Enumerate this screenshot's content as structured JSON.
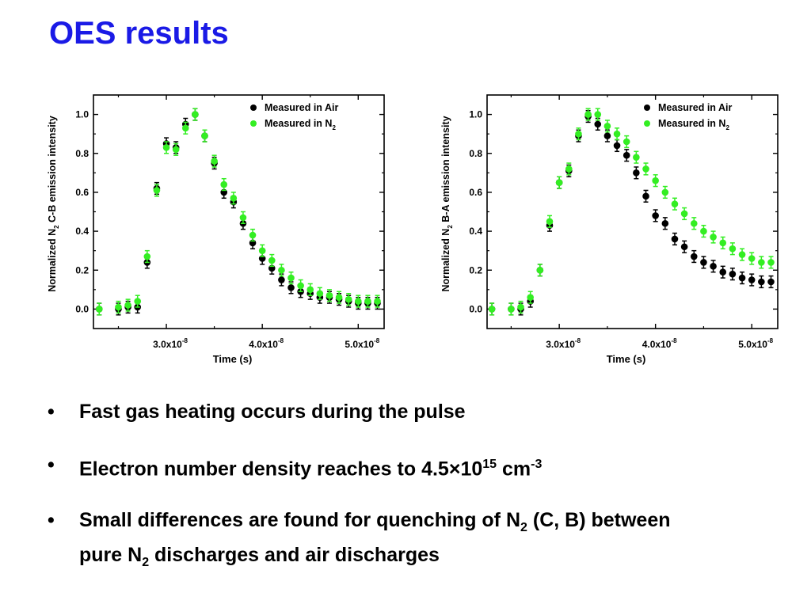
{
  "slide": {
    "title": "OES results",
    "bullet_glyph": "•",
    "bullets": [
      {
        "text": "Fast gas heating occurs during the pulse"
      },
      {
        "pre": "Electron number density reaches to 4.5",
        "times": "×",
        "base": "10",
        "exp": "15",
        "mid": " cm",
        "exp2": "-3"
      },
      {
        "a": "Small differences are found for quenching of N",
        "a_sub": "2",
        "b": " (C, B) between",
        "c": "pure N",
        "c_sub": "2",
        "d": " discharges and air discharges"
      }
    ]
  },
  "chart_data": [
    {
      "type": "scatter",
      "xlabel": "Time (s)",
      "ylabel_pre": "Normalized N",
      "ylabel_sub": "2",
      "ylabel_post": " C-B emission intensity",
      "xlim": [
        2.24e-08,
        5.27e-08
      ],
      "ylim": [
        -0.1,
        1.1
      ],
      "xticks": [
        {
          "v": 3e-08,
          "m": "3.0x10",
          "e": "-8"
        },
        {
          "v": 4e-08,
          "m": "4.0x10",
          "e": "-8"
        },
        {
          "v": 5e-08,
          "m": "5.0x10",
          "e": "-8"
        }
      ],
      "yticks": [
        {
          "v": 0.0,
          "label": "0.0"
        },
        {
          "v": 0.2,
          "label": "0.2"
        },
        {
          "v": 0.4,
          "label": "0.4"
        },
        {
          "v": 0.6,
          "label": "0.6"
        },
        {
          "v": 0.8,
          "label": "0.8"
        },
        {
          "v": 1.0,
          "label": "1.0"
        }
      ],
      "legend_position": "top-right",
      "series": [
        {
          "name": "Measured in Air",
          "color": "#000000",
          "err": 0.03,
          "x": [
            2.3e-08,
            2.5e-08,
            2.6e-08,
            2.7e-08,
            2.8e-08,
            2.9e-08,
            3e-08,
            3.1e-08,
            3.2e-08,
            3.3e-08,
            3.4e-08,
            3.5e-08,
            3.6e-08,
            3.7e-08,
            3.8e-08,
            3.9e-08,
            4e-08,
            4.1e-08,
            4.2e-08,
            4.3e-08,
            4.4e-08,
            4.5e-08,
            4.6e-08,
            4.7e-08,
            4.8e-08,
            4.9e-08,
            5e-08,
            5.1e-08,
            5.2e-08
          ],
          "y": [
            0.0,
            0.0,
            0.01,
            0.01,
            0.24,
            0.62,
            0.85,
            0.83,
            0.95,
            1.0,
            0.89,
            0.75,
            0.6,
            0.55,
            0.44,
            0.34,
            0.26,
            0.21,
            0.15,
            0.11,
            0.09,
            0.08,
            0.06,
            0.06,
            0.05,
            0.04,
            0.03,
            0.03,
            0.03
          ]
        },
        {
          "name": "Measured in N",
          "name_sub": "2",
          "color": "#33ee22",
          "err": 0.03,
          "x": [
            2.3e-08,
            2.5e-08,
            2.6e-08,
            2.7e-08,
            2.8e-08,
            2.9e-08,
            3e-08,
            3.1e-08,
            3.2e-08,
            3.3e-08,
            3.4e-08,
            3.5e-08,
            3.6e-08,
            3.7e-08,
            3.8e-08,
            3.9e-08,
            4e-08,
            4.1e-08,
            4.2e-08,
            4.3e-08,
            4.4e-08,
            4.5e-08,
            4.6e-08,
            4.7e-08,
            4.8e-08,
            4.9e-08,
            5e-08,
            5.1e-08,
            5.2e-08
          ],
          "y": [
            0.0,
            0.01,
            0.02,
            0.04,
            0.27,
            0.61,
            0.83,
            0.82,
            0.93,
            1.0,
            0.89,
            0.76,
            0.64,
            0.57,
            0.47,
            0.38,
            0.3,
            0.25,
            0.2,
            0.16,
            0.12,
            0.1,
            0.08,
            0.07,
            0.06,
            0.05,
            0.04,
            0.04,
            0.04
          ]
        }
      ]
    },
    {
      "type": "scatter",
      "xlabel": "Time (s)",
      "ylabel_pre": "Normalized N",
      "ylabel_sub": "2",
      "ylabel_post": " B-A emission intensity",
      "xlim": [
        2.25e-08,
        5.27e-08
      ],
      "ylim": [
        -0.1,
        1.1
      ],
      "xticks": [
        {
          "v": 3e-08,
          "m": "3.0x10",
          "e": "-8"
        },
        {
          "v": 4e-08,
          "m": "4.0x10",
          "e": "-8"
        },
        {
          "v": 5e-08,
          "m": "5.0x10",
          "e": "-8"
        }
      ],
      "yticks": [
        {
          "v": 0.0,
          "label": "0.0"
        },
        {
          "v": 0.2,
          "label": "0.2"
        },
        {
          "v": 0.4,
          "label": "0.4"
        },
        {
          "v": 0.6,
          "label": "0.6"
        },
        {
          "v": 0.8,
          "label": "0.8"
        },
        {
          "v": 1.0,
          "label": "1.0"
        }
      ],
      "legend_position": "top-right",
      "series": [
        {
          "name": "Measured in Air",
          "color": "#000000",
          "err": 0.03,
          "x": [
            2.3e-08,
            2.5e-08,
            2.6e-08,
            2.7e-08,
            2.8e-08,
            2.9e-08,
            3e-08,
            3.1e-08,
            3.2e-08,
            3.3e-08,
            3.4e-08,
            3.5e-08,
            3.6e-08,
            3.7e-08,
            3.8e-08,
            3.9e-08,
            4e-08,
            4.1e-08,
            4.2e-08,
            4.3e-08,
            4.4e-08,
            4.5e-08,
            4.6e-08,
            4.7e-08,
            4.8e-08,
            4.9e-08,
            5e-08,
            5.1e-08,
            5.2e-08
          ],
          "y": [
            0.0,
            0.0,
            0.0,
            0.04,
            0.2,
            0.43,
            0.65,
            0.71,
            0.89,
            0.99,
            0.95,
            0.89,
            0.84,
            0.79,
            0.7,
            0.58,
            0.48,
            0.44,
            0.36,
            0.32,
            0.27,
            0.24,
            0.22,
            0.19,
            0.18,
            0.16,
            0.15,
            0.14,
            0.14
          ]
        },
        {
          "name": "Measured in N",
          "name_sub": "2",
          "color": "#33ee22",
          "err": 0.03,
          "x": [
            2.3e-08,
            2.5e-08,
            2.6e-08,
            2.7e-08,
            2.8e-08,
            2.9e-08,
            3e-08,
            3.1e-08,
            3.2e-08,
            3.3e-08,
            3.4e-08,
            3.5e-08,
            3.6e-08,
            3.7e-08,
            3.8e-08,
            3.9e-08,
            4e-08,
            4.1e-08,
            4.2e-08,
            4.3e-08,
            4.4e-08,
            4.5e-08,
            4.6e-08,
            4.7e-08,
            4.8e-08,
            4.9e-08,
            5e-08,
            5.1e-08,
            5.2e-08
          ],
          "y": [
            0.0,
            0.0,
            0.01,
            0.06,
            0.2,
            0.45,
            0.65,
            0.72,
            0.9,
            1.0,
            1.0,
            0.94,
            0.9,
            0.86,
            0.78,
            0.72,
            0.66,
            0.6,
            0.54,
            0.49,
            0.44,
            0.4,
            0.37,
            0.34,
            0.31,
            0.28,
            0.26,
            0.24,
            0.24
          ]
        }
      ]
    }
  ]
}
